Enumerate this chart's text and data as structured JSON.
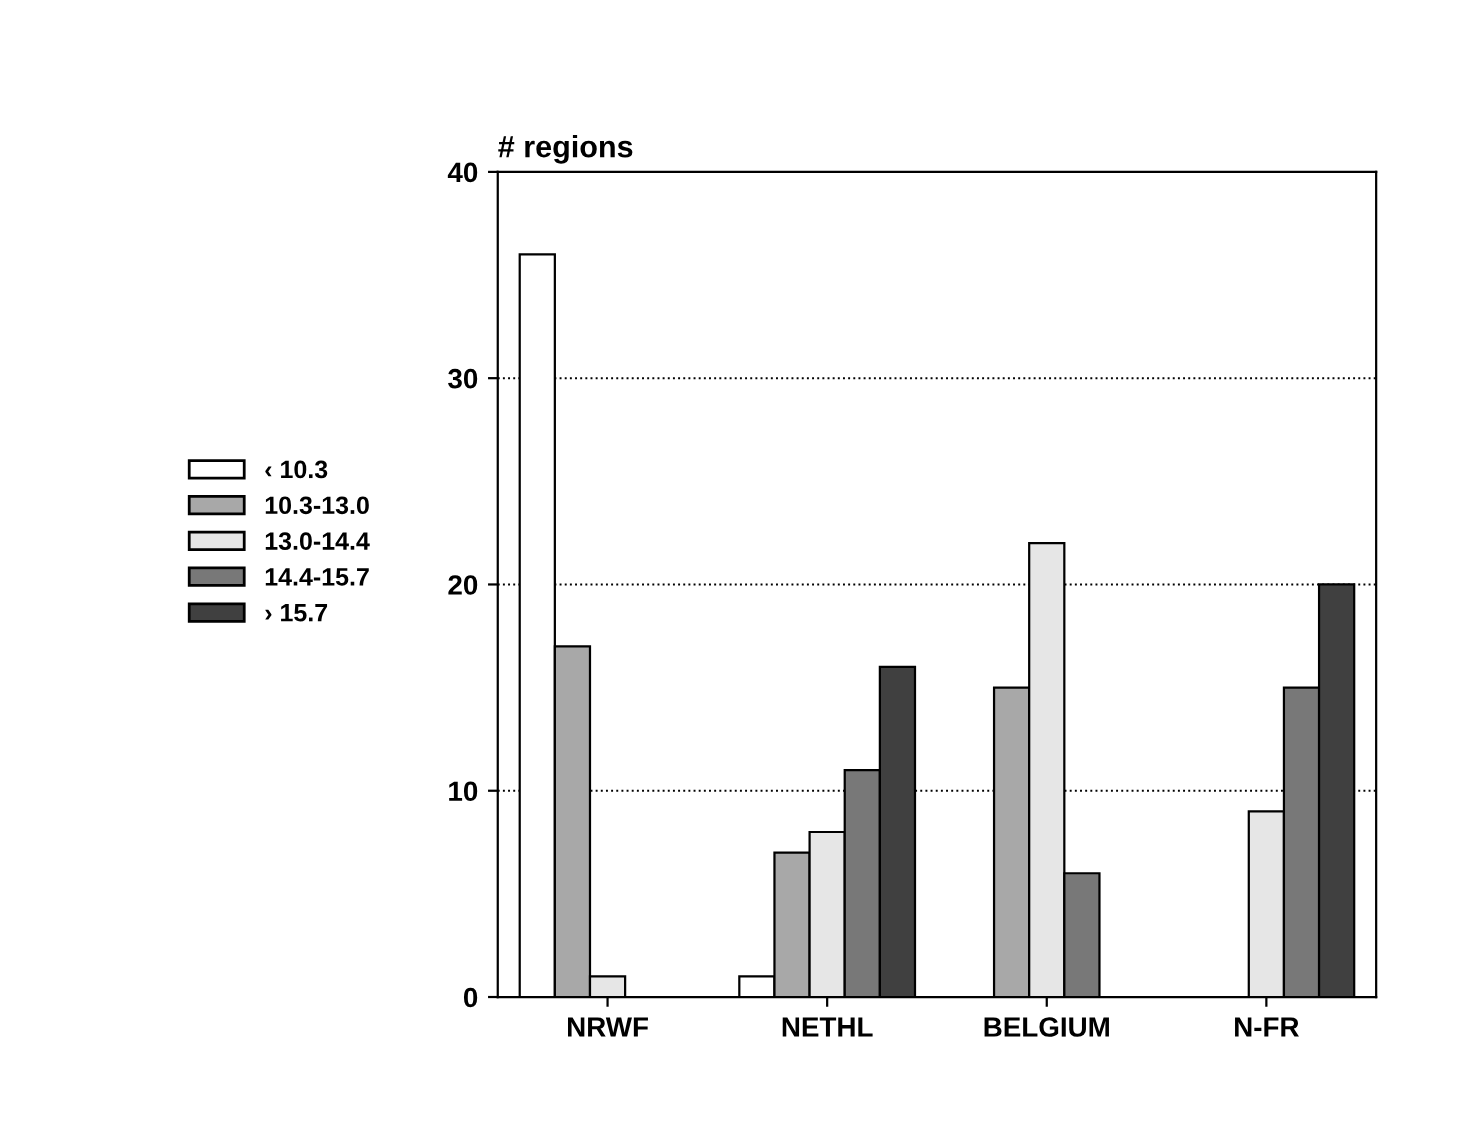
{
  "chart_data": {
    "type": "bar",
    "ylabel": "# regions",
    "categories": [
      "NRWF",
      "NETHL",
      "BELGIUM",
      "N-FR"
    ],
    "series": [
      {
        "name": "‹ 10.3",
        "color": "#ffffff",
        "values": [
          36,
          1,
          0,
          0
        ]
      },
      {
        "name": "10.3-13.0",
        "color": "#a8a8a8",
        "values": [
          17,
          7,
          15,
          0
        ]
      },
      {
        "name": "13.0-14.4",
        "color": "#e6e6e6",
        "values": [
          1,
          8,
          22,
          9
        ]
      },
      {
        "name": "14.4-15.7",
        "color": "#787878",
        "values": [
          0,
          11,
          6,
          15
        ]
      },
      {
        "name": "› 15.7",
        "color": "#404040",
        "values": [
          0,
          16,
          0,
          20
        ]
      }
    ],
    "ylim": [
      0,
      40
    ],
    "yticks": [
      0,
      10,
      20,
      30,
      40
    ],
    "grid": "y",
    "legend": "left"
  }
}
